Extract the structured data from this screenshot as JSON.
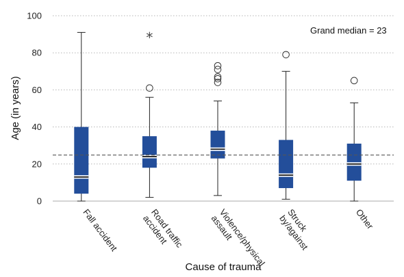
{
  "chart_data": {
    "type": "box",
    "title": "",
    "xlabel": "Cause of trauma",
    "ylabel": "Age (in years)",
    "ylim": [
      0,
      100
    ],
    "yticks": [
      "0",
      "20",
      "40",
      "60",
      "80",
      "100"
    ],
    "grid": "horizontal dotted",
    "reference_line": {
      "value": 23,
      "label": "Grand median = 23",
      "style": "dashed"
    },
    "box_color": "#234E9A",
    "categories": [
      {
        "label": [
          "Fall accident"
        ],
        "min": 0,
        "q1": 4,
        "median": 13,
        "q3": 40,
        "max": 91,
        "outliers": [],
        "extremes": []
      },
      {
        "label": [
          "Road traffic",
          "accident"
        ],
        "min": 2,
        "q1": 18,
        "median": 24,
        "q3": 35,
        "max": 56,
        "outliers": [
          61
        ],
        "extremes": [
          89
        ]
      },
      {
        "label": [
          "Violence/physical",
          "assault"
        ],
        "min": 3,
        "q1": 23,
        "median": 28,
        "q3": 38,
        "max": 54,
        "outliers": [
          64,
          66,
          67,
          71,
          73
        ],
        "extremes": []
      },
      {
        "label": [
          "Struck",
          "by/against"
        ],
        "min": 1,
        "q1": 7,
        "median": 14,
        "q3": 33,
        "max": 70,
        "outliers": [
          79
        ],
        "extremes": []
      },
      {
        "label": [
          "Other"
        ],
        "min": 0,
        "q1": 11,
        "median": 20,
        "q3": 31,
        "max": 53,
        "outliers": [
          65
        ],
        "extremes": []
      }
    ]
  }
}
